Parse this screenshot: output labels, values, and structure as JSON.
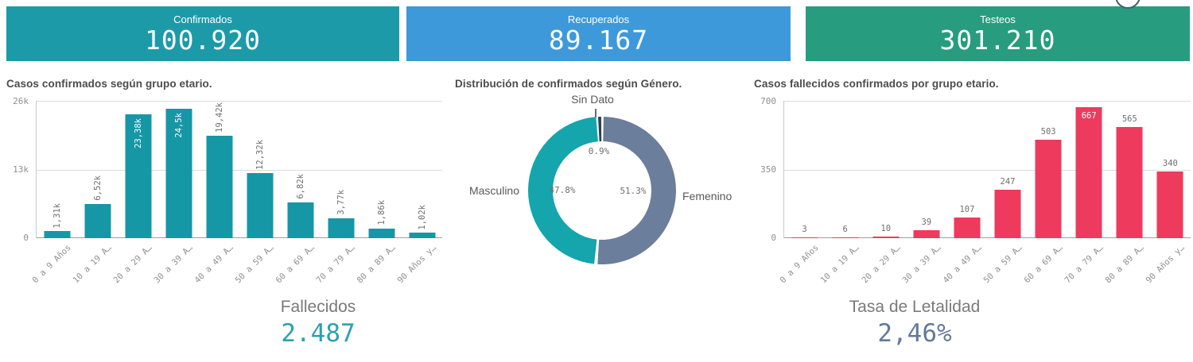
{
  "kpis": [
    {
      "label": "Confirmados",
      "value": "100.920",
      "bg": "#1d9aa8"
    },
    {
      "label": "Recuperados",
      "value": "89.167",
      "bg": "#3d99da"
    },
    {
      "label": "Testeos",
      "value": "301.210",
      "bg": "#279c7f"
    }
  ],
  "bottom_kpis": [
    {
      "label": "Fallecidos",
      "value": "2.487",
      "color": "#2ba1af"
    },
    {
      "label": "Tasa de Letalidad",
      "value": "2,46%",
      "color": "#63799b"
    }
  ],
  "chart_data": [
    {
      "type": "bar",
      "title": "Casos confirmados según grupo etario.",
      "categories": [
        "0 a 9 Años",
        "10 a 19 A…",
        "20 a 29 A…",
        "30 a 39 A…",
        "40 a 49 A…",
        "50 a 59 A…",
        "60 a 69 A…",
        "70 a 79 A…",
        "80 a 89 A…",
        "90 Años y…"
      ],
      "values": [
        1310,
        6520,
        23380,
        24500,
        19420,
        12320,
        6820,
        3770,
        1860,
        1020
      ],
      "value_labels": [
        "1,31k",
        "6,52k",
        "23,38k",
        "24,5k",
        "19,42k",
        "12,32k",
        "6,82k",
        "3,77k",
        "1,86k",
        "1,02k"
      ],
      "xlabel": "",
      "ylabel": "",
      "ylim": [
        0,
        26000
      ],
      "yticks": [
        "26k",
        "13k",
        "0"
      ],
      "grid": true,
      "bar_color": "#1597a6",
      "value_label_rotation": 90
    },
    {
      "type": "pie",
      "title": "Distribución de confirmados según Género.",
      "slices": [
        {
          "label": "Femenino",
          "pct": 51.3,
          "pct_label": "51.3%",
          "color": "#6b7e9b"
        },
        {
          "label": "Masculino",
          "pct": 47.8,
          "pct_label": "47.8%",
          "color": "#14a5ad"
        },
        {
          "label": "Sin Dato",
          "pct": 0.9,
          "pct_label": "0.9%",
          "color": "#2f3e4e"
        }
      ],
      "donut": true,
      "legend": "none"
    },
    {
      "type": "bar",
      "title": "Casos fallecidos confirmados por grupo etario.",
      "categories": [
        "0 a 9 Años",
        "10 a 19 A…",
        "20 a 29 A…",
        "30 a 39 A…",
        "40 a 49 A…",
        "50 a 59 A…",
        "60 a 69 A…",
        "70 a 79 A…",
        "80 a 89 A…",
        "90 Años y…"
      ],
      "values": [
        3,
        6,
        10,
        39,
        107,
        247,
        503,
        667,
        565,
        340
      ],
      "value_labels": [
        "3",
        "6",
        "10",
        "39",
        "107",
        "247",
        "503",
        "667",
        "565",
        "340"
      ],
      "xlabel": "",
      "ylabel": "",
      "ylim": [
        0,
        700
      ],
      "yticks": [
        "700",
        "350",
        "0"
      ],
      "grid": true,
      "bar_color": "#ee3a5d",
      "value_label_rotation": 0
    }
  ]
}
